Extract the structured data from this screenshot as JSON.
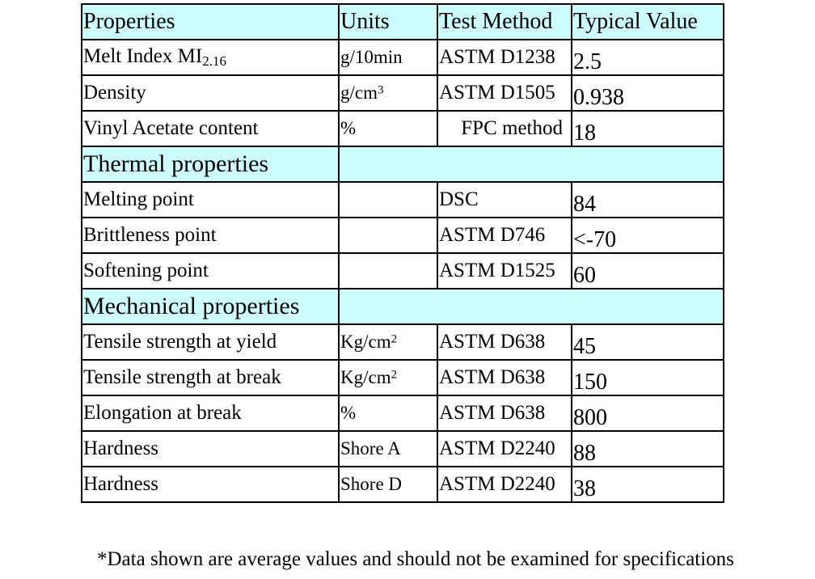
{
  "table": {
    "headers": {
      "properties": "Properties",
      "units": "Units",
      "test_method": "Test Method",
      "typical_value": "Typical Value"
    },
    "general_rows": [
      {
        "property": "Melt Index MI",
        "property_sub": "2.16",
        "unit": "g/10min",
        "unit_sup": "",
        "method": "ASTM D1238",
        "value": "2.5"
      },
      {
        "property": "Density",
        "property_sub": "",
        "unit": "g/cm",
        "unit_sup": "3",
        "method": "ASTM D1505",
        "value": "0.938"
      },
      {
        "property": "Vinyl Acetate content",
        "property_sub": "",
        "unit": "%",
        "unit_sup": "",
        "method": "FPC method",
        "value": "18"
      }
    ],
    "thermal_section": "Thermal properties",
    "thermal_rows": [
      {
        "property": "Melting point",
        "unit": "",
        "unit_sup": "",
        "method": "DSC",
        "value": "84"
      },
      {
        "property": "Brittleness point",
        "unit": "",
        "unit_sup": "",
        "method": "ASTM D746",
        "value": "<-70"
      },
      {
        "property": "Softening point",
        "unit": "",
        "unit_sup": "",
        "method": "ASTM D1525",
        "value": "60"
      }
    ],
    "mechanical_section": "Mechanical properties",
    "mechanical_rows": [
      {
        "property": "Tensile strength at yield",
        "unit": "Kg/cm",
        "unit_sup": "2",
        "method": "ASTM D638",
        "value": "45"
      },
      {
        "property": "Tensile strength at break",
        "unit": "Kg/cm",
        "unit_sup": "2",
        "method": "ASTM D638",
        "value": "150"
      },
      {
        "property": "Elongation at break",
        "unit": "%",
        "unit_sup": "",
        "method": "ASTM D638",
        "value": "800"
      },
      {
        "property": "Hardness",
        "unit": "Shore A",
        "unit_sup": "",
        "method": "ASTM D2240",
        "value": "88"
      },
      {
        "property": "Hardness",
        "unit": "Shore D",
        "unit_sup": "",
        "method": "ASTM D2240",
        "value": "38"
      }
    ]
  },
  "footnote": "*Data shown are average values and should not be examined for specifications",
  "colors": {
    "header_background": "#cdfdfd",
    "border": "#000000"
  }
}
